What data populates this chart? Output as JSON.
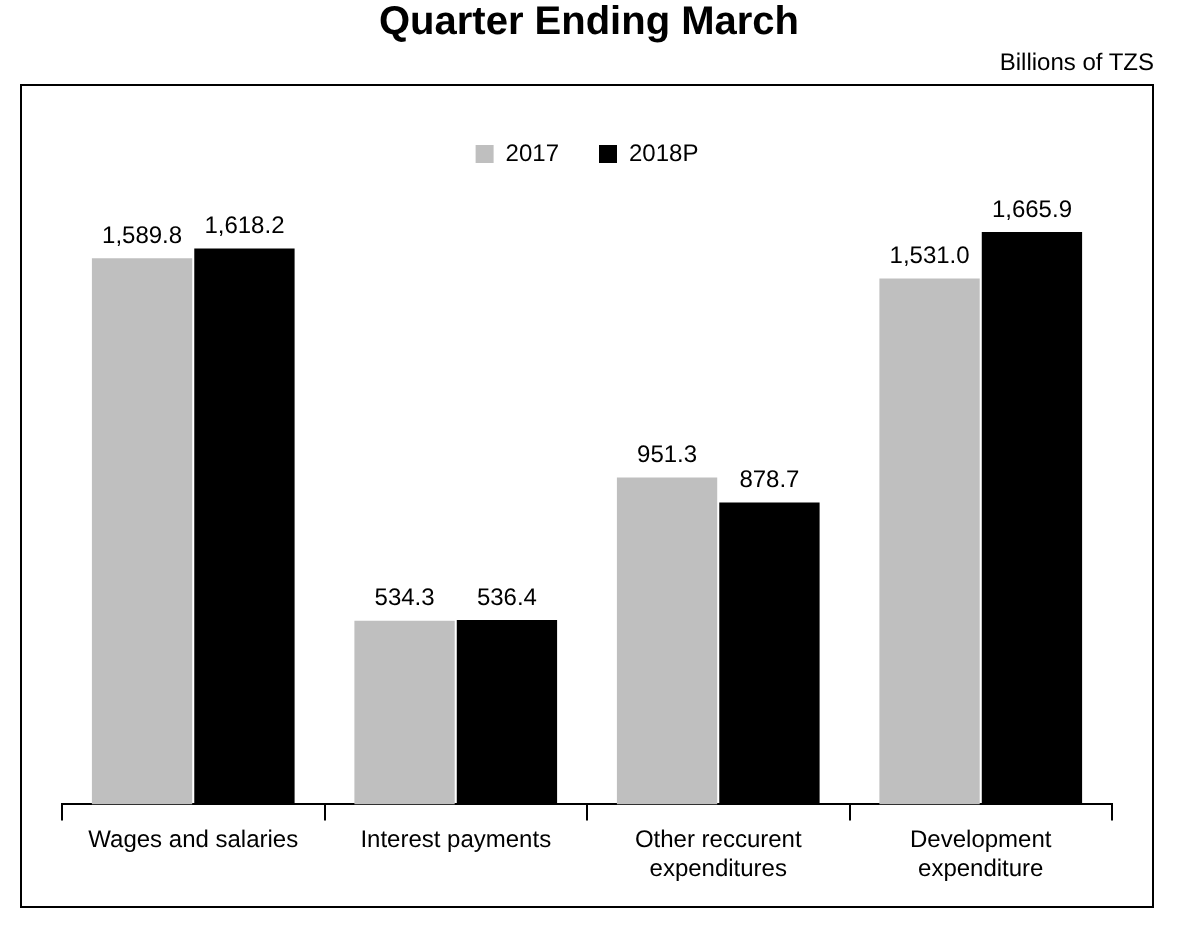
{
  "chart_data": {
    "type": "bar",
    "title": "Quarter Ending March",
    "annotations": [
      "Billions of TZS"
    ],
    "categories": [
      "Wages and salaries",
      "Interest payments",
      "Other reccurent expenditures",
      "Development expenditure"
    ],
    "series": [
      {
        "name": "2017",
        "color": "#bfbfbf",
        "values": [
          1589.8,
          534.3,
          951.3,
          1531.0
        ],
        "value_labels": [
          "1,589.8",
          "534.3",
          "951.3",
          "1,531.0"
        ]
      },
      {
        "name": "2018P",
        "color": "#000000",
        "values": [
          1618.2,
          536.4,
          878.7,
          1665.9
        ],
        "value_labels": [
          "1,618.2",
          "536.4",
          "878.7",
          "1,665.9"
        ]
      }
    ],
    "legend": "top"
  }
}
